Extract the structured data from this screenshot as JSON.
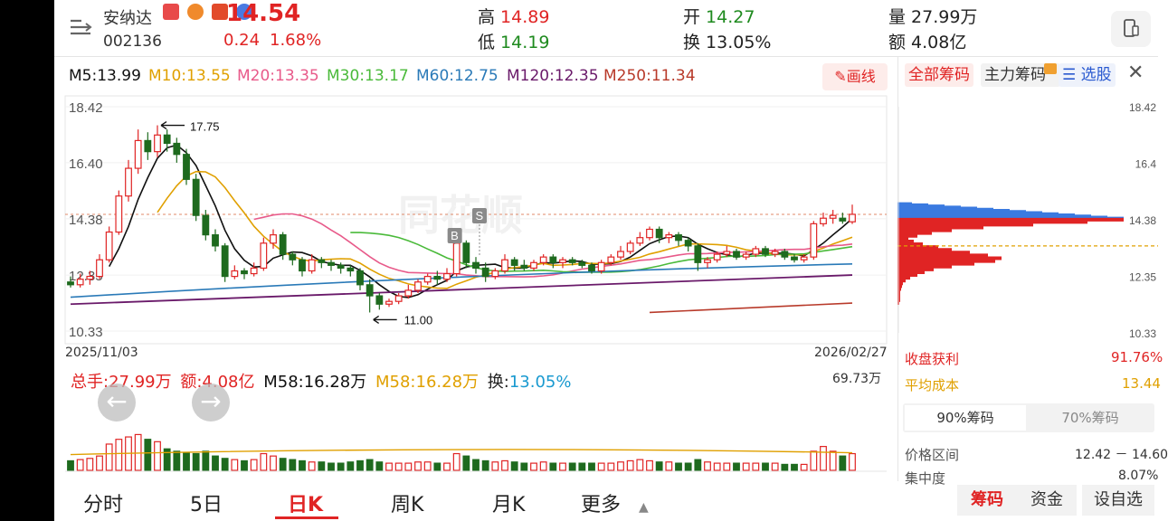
{
  "stock": {
    "name": "安纳达",
    "code": "002136",
    "price": "14.54",
    "change": "0.24",
    "change_pct": "1.68%"
  },
  "quote": {
    "high_label": "高",
    "high": "14.89",
    "low_label": "低",
    "low": "14.19",
    "open_label": "开",
    "open": "14.27",
    "turnover_label": "换",
    "turnover": "13.05%",
    "volume_label": "量",
    "volume": "27.99万",
    "amount_label": "额",
    "amount": "4.08亿"
  },
  "ma": {
    "m5": "M5:13.99",
    "m10": "M10:13.55",
    "m20": "M20:13.35",
    "m30": "M30:13.17",
    "m60": "M60:12.75",
    "m120": "M120:12.35",
    "m250": "M250:11.34"
  },
  "draw_button": "画线",
  "chart": {
    "y_labels": [
      "18.42",
      "16.40",
      "14.38",
      "12.35",
      "10.33"
    ],
    "date_start": "2025/11/03",
    "date_end": "2026/02/27",
    "high_marker": "17.75",
    "low_marker": "11.00",
    "buy_marker": "B",
    "sell_marker": "S",
    "watermark": "同花顺"
  },
  "volume": {
    "total_label": "总手:27.99万",
    "amount_label": "额:4.08亿",
    "m58_a": "M58:16.28万",
    "m58_b": "M58:16.28万",
    "turn_label": "换:",
    "turn_value": "13.05%",
    "max": "69.73万"
  },
  "tabs": [
    "分时",
    "5日",
    "日K",
    "周K",
    "月K",
    "更多"
  ],
  "side": {
    "tab_all": "全部筹码",
    "tab_main": "主力筹码",
    "tab_pick": "选股",
    "y_labels": [
      "18.42",
      "16.4",
      "14.38",
      "12.35",
      "10.33"
    ],
    "profit_label": "收盘获利",
    "profit_value": "91.76%",
    "avg_label": "平均成本",
    "avg_value": "13.44",
    "seg_90": "90%筹码",
    "seg_70": "70%筹码",
    "range_label": "价格区间",
    "range_value": "12.42 － 14.60",
    "conc_label": "集中度",
    "conc_value": "8.07%"
  },
  "bottom_buttons": {
    "chips": "筹码",
    "funds": "资金",
    "settings": "设自选"
  },
  "chart_data": {
    "type": "candlestick",
    "ylim": [
      10.33,
      18.42
    ],
    "candles": [
      [
        12.1,
        12.0,
        12.3,
        11.9
      ],
      [
        12.0,
        12.2,
        12.4,
        11.9
      ],
      [
        12.2,
        12.3,
        12.5,
        12.0
      ],
      [
        12.3,
        12.9,
        13.1,
        12.2
      ],
      [
        12.9,
        13.9,
        14.1,
        12.8
      ],
      [
        13.9,
        15.2,
        15.4,
        13.8
      ],
      [
        15.2,
        16.2,
        16.5,
        15.0
      ],
      [
        16.2,
        17.2,
        17.6,
        16.0
      ],
      [
        17.2,
        16.8,
        17.5,
        16.5
      ],
      [
        16.8,
        17.4,
        17.75,
        16.6
      ],
      [
        17.4,
        17.1,
        17.6,
        16.8
      ],
      [
        17.1,
        16.7,
        17.3,
        16.4
      ],
      [
        16.7,
        15.8,
        16.9,
        15.6
      ],
      [
        15.8,
        14.5,
        16.0,
        14.3
      ],
      [
        14.5,
        13.8,
        14.7,
        13.6
      ],
      [
        13.8,
        13.4,
        14.0,
        13.2
      ],
      [
        13.4,
        12.3,
        13.5,
        12.1
      ],
      [
        12.3,
        12.5,
        12.7,
        12.2
      ],
      [
        12.5,
        12.4,
        12.6,
        12.2
      ],
      [
        12.4,
        12.6,
        12.8,
        12.3
      ],
      [
        12.6,
        13.5,
        13.7,
        12.5
      ],
      [
        13.5,
        13.8,
        14.0,
        13.3
      ],
      [
        13.8,
        13.1,
        13.9,
        12.9
      ],
      [
        13.1,
        12.9,
        13.2,
        12.7
      ],
      [
        12.9,
        12.5,
        13.0,
        12.3
      ],
      [
        12.5,
        12.9,
        13.1,
        12.4
      ],
      [
        12.9,
        12.8,
        13.0,
        12.6
      ],
      [
        12.8,
        12.7,
        12.9,
        12.5
      ],
      [
        12.7,
        12.6,
        12.8,
        12.4
      ],
      [
        12.6,
        12.5,
        12.7,
        12.3
      ],
      [
        12.5,
        12.0,
        12.6,
        11.8
      ],
      [
        12.0,
        11.6,
        12.2,
        11.0
      ],
      [
        11.6,
        11.3,
        11.7,
        11.1
      ],
      [
        11.3,
        11.4,
        11.5,
        11.2
      ],
      [
        11.4,
        11.6,
        11.7,
        11.3
      ],
      [
        11.6,
        11.8,
        12.0,
        11.5
      ],
      [
        11.8,
        12.1,
        12.2,
        11.7
      ],
      [
        12.1,
        12.3,
        12.4,
        12.0
      ],
      [
        12.3,
        12.2,
        12.5,
        12.0
      ],
      [
        12.2,
        12.4,
        12.6,
        12.1
      ],
      [
        12.4,
        13.5,
        13.7,
        12.3
      ],
      [
        13.5,
        12.8,
        13.6,
        12.6
      ],
      [
        12.8,
        12.6,
        13.0,
        12.4
      ],
      [
        12.6,
        12.3,
        12.8,
        12.1
      ],
      [
        12.3,
        12.5,
        12.6,
        12.2
      ],
      [
        12.5,
        12.9,
        13.1,
        12.4
      ],
      [
        12.9,
        12.7,
        13.0,
        12.5
      ],
      [
        12.7,
        12.6,
        12.9,
        12.5
      ],
      [
        12.6,
        12.8,
        12.9,
        12.5
      ],
      [
        12.8,
        13.0,
        13.1,
        12.7
      ],
      [
        13.0,
        12.8,
        13.1,
        12.6
      ],
      [
        12.8,
        12.9,
        13.0,
        12.6
      ],
      [
        12.9,
        12.8,
        13.0,
        12.7
      ],
      [
        12.8,
        12.7,
        12.9,
        12.6
      ],
      [
        12.7,
        12.5,
        12.8,
        12.4
      ],
      [
        12.5,
        12.8,
        12.9,
        12.4
      ],
      [
        12.8,
        13.0,
        13.1,
        12.7
      ],
      [
        13.0,
        13.2,
        13.4,
        12.9
      ],
      [
        13.2,
        13.5,
        13.6,
        13.1
      ],
      [
        13.5,
        13.7,
        13.9,
        13.4
      ],
      [
        13.7,
        14.0,
        14.1,
        13.6
      ],
      [
        14.0,
        13.7,
        14.1,
        13.5
      ],
      [
        13.7,
        13.8,
        13.9,
        13.5
      ],
      [
        13.8,
        13.6,
        13.9,
        13.4
      ],
      [
        13.6,
        13.4,
        13.7,
        13.2
      ],
      [
        13.4,
        12.8,
        13.5,
        12.5
      ],
      [
        12.8,
        12.9,
        13.0,
        12.6
      ],
      [
        12.9,
        13.1,
        13.2,
        12.8
      ],
      [
        13.1,
        13.2,
        13.4,
        13.0
      ],
      [
        13.2,
        13.0,
        13.3,
        12.9
      ],
      [
        13.0,
        13.1,
        13.2,
        12.9
      ],
      [
        13.1,
        13.3,
        13.4,
        13.0
      ],
      [
        13.3,
        13.1,
        13.4,
        13.0
      ],
      [
        13.1,
        13.2,
        13.3,
        13.0
      ],
      [
        13.2,
        13.0,
        13.3,
        12.9
      ],
      [
        13.0,
        12.9,
        13.1,
        12.8
      ],
      [
        12.9,
        13.0,
        13.1,
        12.8
      ],
      [
        13.0,
        14.2,
        14.3,
        12.9
      ],
      [
        14.2,
        14.4,
        14.6,
        14.1
      ],
      [
        14.4,
        14.5,
        14.7,
        14.2
      ],
      [
        14.4,
        14.3,
        14.6,
        14.2
      ],
      [
        14.27,
        14.54,
        14.89,
        14.19
      ]
    ],
    "volumes": [
      8,
      9,
      10,
      12,
      22,
      26,
      28,
      30,
      26,
      24,
      18,
      16,
      15,
      14,
      16,
      12,
      10,
      9,
      8,
      9,
      14,
      12,
      10,
      9,
      8,
      7,
      7,
      6,
      6,
      7,
      8,
      9,
      7,
      6,
      6,
      6,
      7,
      7,
      6,
      6,
      14,
      12,
      9,
      8,
      7,
      8,
      7,
      6,
      6,
      7,
      6,
      6,
      6,
      6,
      6,
      6,
      6,
      7,
      8,
      9,
      8,
      7,
      7,
      6,
      6,
      9,
      7,
      6,
      6,
      6,
      6,
      6,
      6,
      6,
      5,
      5,
      5,
      16,
      20,
      16,
      12,
      14
    ],
    "m58_volume": 16.28
  }
}
